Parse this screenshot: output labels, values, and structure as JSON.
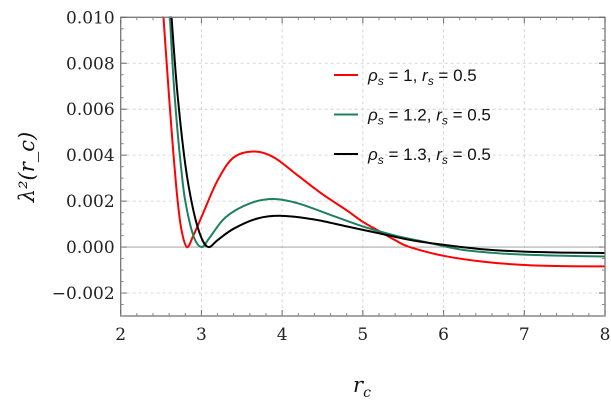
{
  "chart_data": {
    "type": "line",
    "title": "",
    "xlabel": "r_c",
    "ylabel": "λ²(r_c)",
    "xlim": [
      2,
      8
    ],
    "ylim": [
      -0.003,
      0.01
    ],
    "grid": true,
    "legend_placement": "top-right",
    "xticks": [
      "2",
      "3",
      "4",
      "5",
      "6",
      "7",
      "8"
    ],
    "xtick_values": [
      2,
      3,
      4,
      5,
      6,
      7,
      8
    ],
    "yticks": [
      "−0.002",
      "0.000",
      "0.002",
      "0.004",
      "0.006",
      "0.008",
      "0.010"
    ],
    "ytick_values": [
      -0.002,
      0,
      0.002,
      0.004,
      0.006,
      0.008,
      0.01
    ],
    "series": [
      {
        "name": "ρs = 1, rs = 0.5",
        "rho": "1",
        "rs": "0.5",
        "color": "#ff0000",
        "points": [
          [
            2.53,
            0.01
          ],
          [
            2.6,
            0.0065
          ],
          [
            2.65,
            0.0042
          ],
          [
            2.7,
            0.0022
          ],
          [
            2.75,
            0.0008
          ],
          [
            2.82,
            0.0
          ],
          [
            2.9,
            0.0005
          ],
          [
            3.0,
            0.0013
          ],
          [
            3.2,
            0.0029
          ],
          [
            3.4,
            0.0039
          ],
          [
            3.66,
            0.00416
          ],
          [
            3.9,
            0.0039
          ],
          [
            4.2,
            0.0031
          ],
          [
            4.5,
            0.0023
          ],
          [
            4.8,
            0.0016
          ],
          [
            5.0,
            0.0011
          ],
          [
            5.2,
            0.0007
          ],
          [
            5.4,
            0.0003
          ],
          [
            5.58,
            0.0
          ],
          [
            6.0,
            -0.00038
          ],
          [
            6.5,
            -0.00064
          ],
          [
            7.0,
            -0.00078
          ],
          [
            7.5,
            -0.00083
          ],
          [
            8.0,
            -0.00084
          ]
        ]
      },
      {
        "name": "ρs = 1.2, rs = 0.5",
        "rho": "1.2",
        "rs": "0.5",
        "color": "#1f7f60",
        "points": [
          [
            2.61,
            0.01
          ],
          [
            2.65,
            0.0075
          ],
          [
            2.7,
            0.0052
          ],
          [
            2.75,
            0.0034
          ],
          [
            2.8,
            0.002
          ],
          [
            2.9,
            0.0005
          ],
          [
            3.0,
            0.0
          ],
          [
            3.1,
            0.0004
          ],
          [
            3.3,
            0.0013
          ],
          [
            3.6,
            0.0019
          ],
          [
            3.89,
            0.00209
          ],
          [
            4.2,
            0.0019
          ],
          [
            4.6,
            0.0014
          ],
          [
            5.0,
            0.0009
          ],
          [
            5.4,
            0.0005
          ],
          [
            5.8,
            0.0002
          ],
          [
            6.2,
            -0.0001
          ],
          [
            6.6,
            -0.00025
          ],
          [
            7.0,
            -0.00033
          ],
          [
            7.5,
            -0.00038
          ],
          [
            8.0,
            -0.00041
          ]
        ]
      },
      {
        "name": "ρs = 1.3, rs = 0.5",
        "rho": "1.3",
        "rs": "0.5",
        "color": "#000000",
        "points": [
          [
            2.63,
            0.01
          ],
          [
            2.7,
            0.0068
          ],
          [
            2.8,
            0.0036
          ],
          [
            2.9,
            0.0016
          ],
          [
            3.0,
            0.0004
          ],
          [
            3.09,
            0.0
          ],
          [
            3.2,
            0.0003
          ],
          [
            3.4,
            0.0008
          ],
          [
            3.7,
            0.00125
          ],
          [
            4.0,
            0.00136
          ],
          [
            4.4,
            0.0012
          ],
          [
            4.8,
            0.0009
          ],
          [
            5.2,
            0.0006
          ],
          [
            5.6,
            0.0003
          ],
          [
            6.0,
            0.0001
          ],
          [
            6.5,
            -0.0001
          ],
          [
            7.0,
            -0.0002
          ],
          [
            7.5,
            -0.00024
          ],
          [
            8.0,
            -0.00026
          ]
        ]
      }
    ]
  }
}
